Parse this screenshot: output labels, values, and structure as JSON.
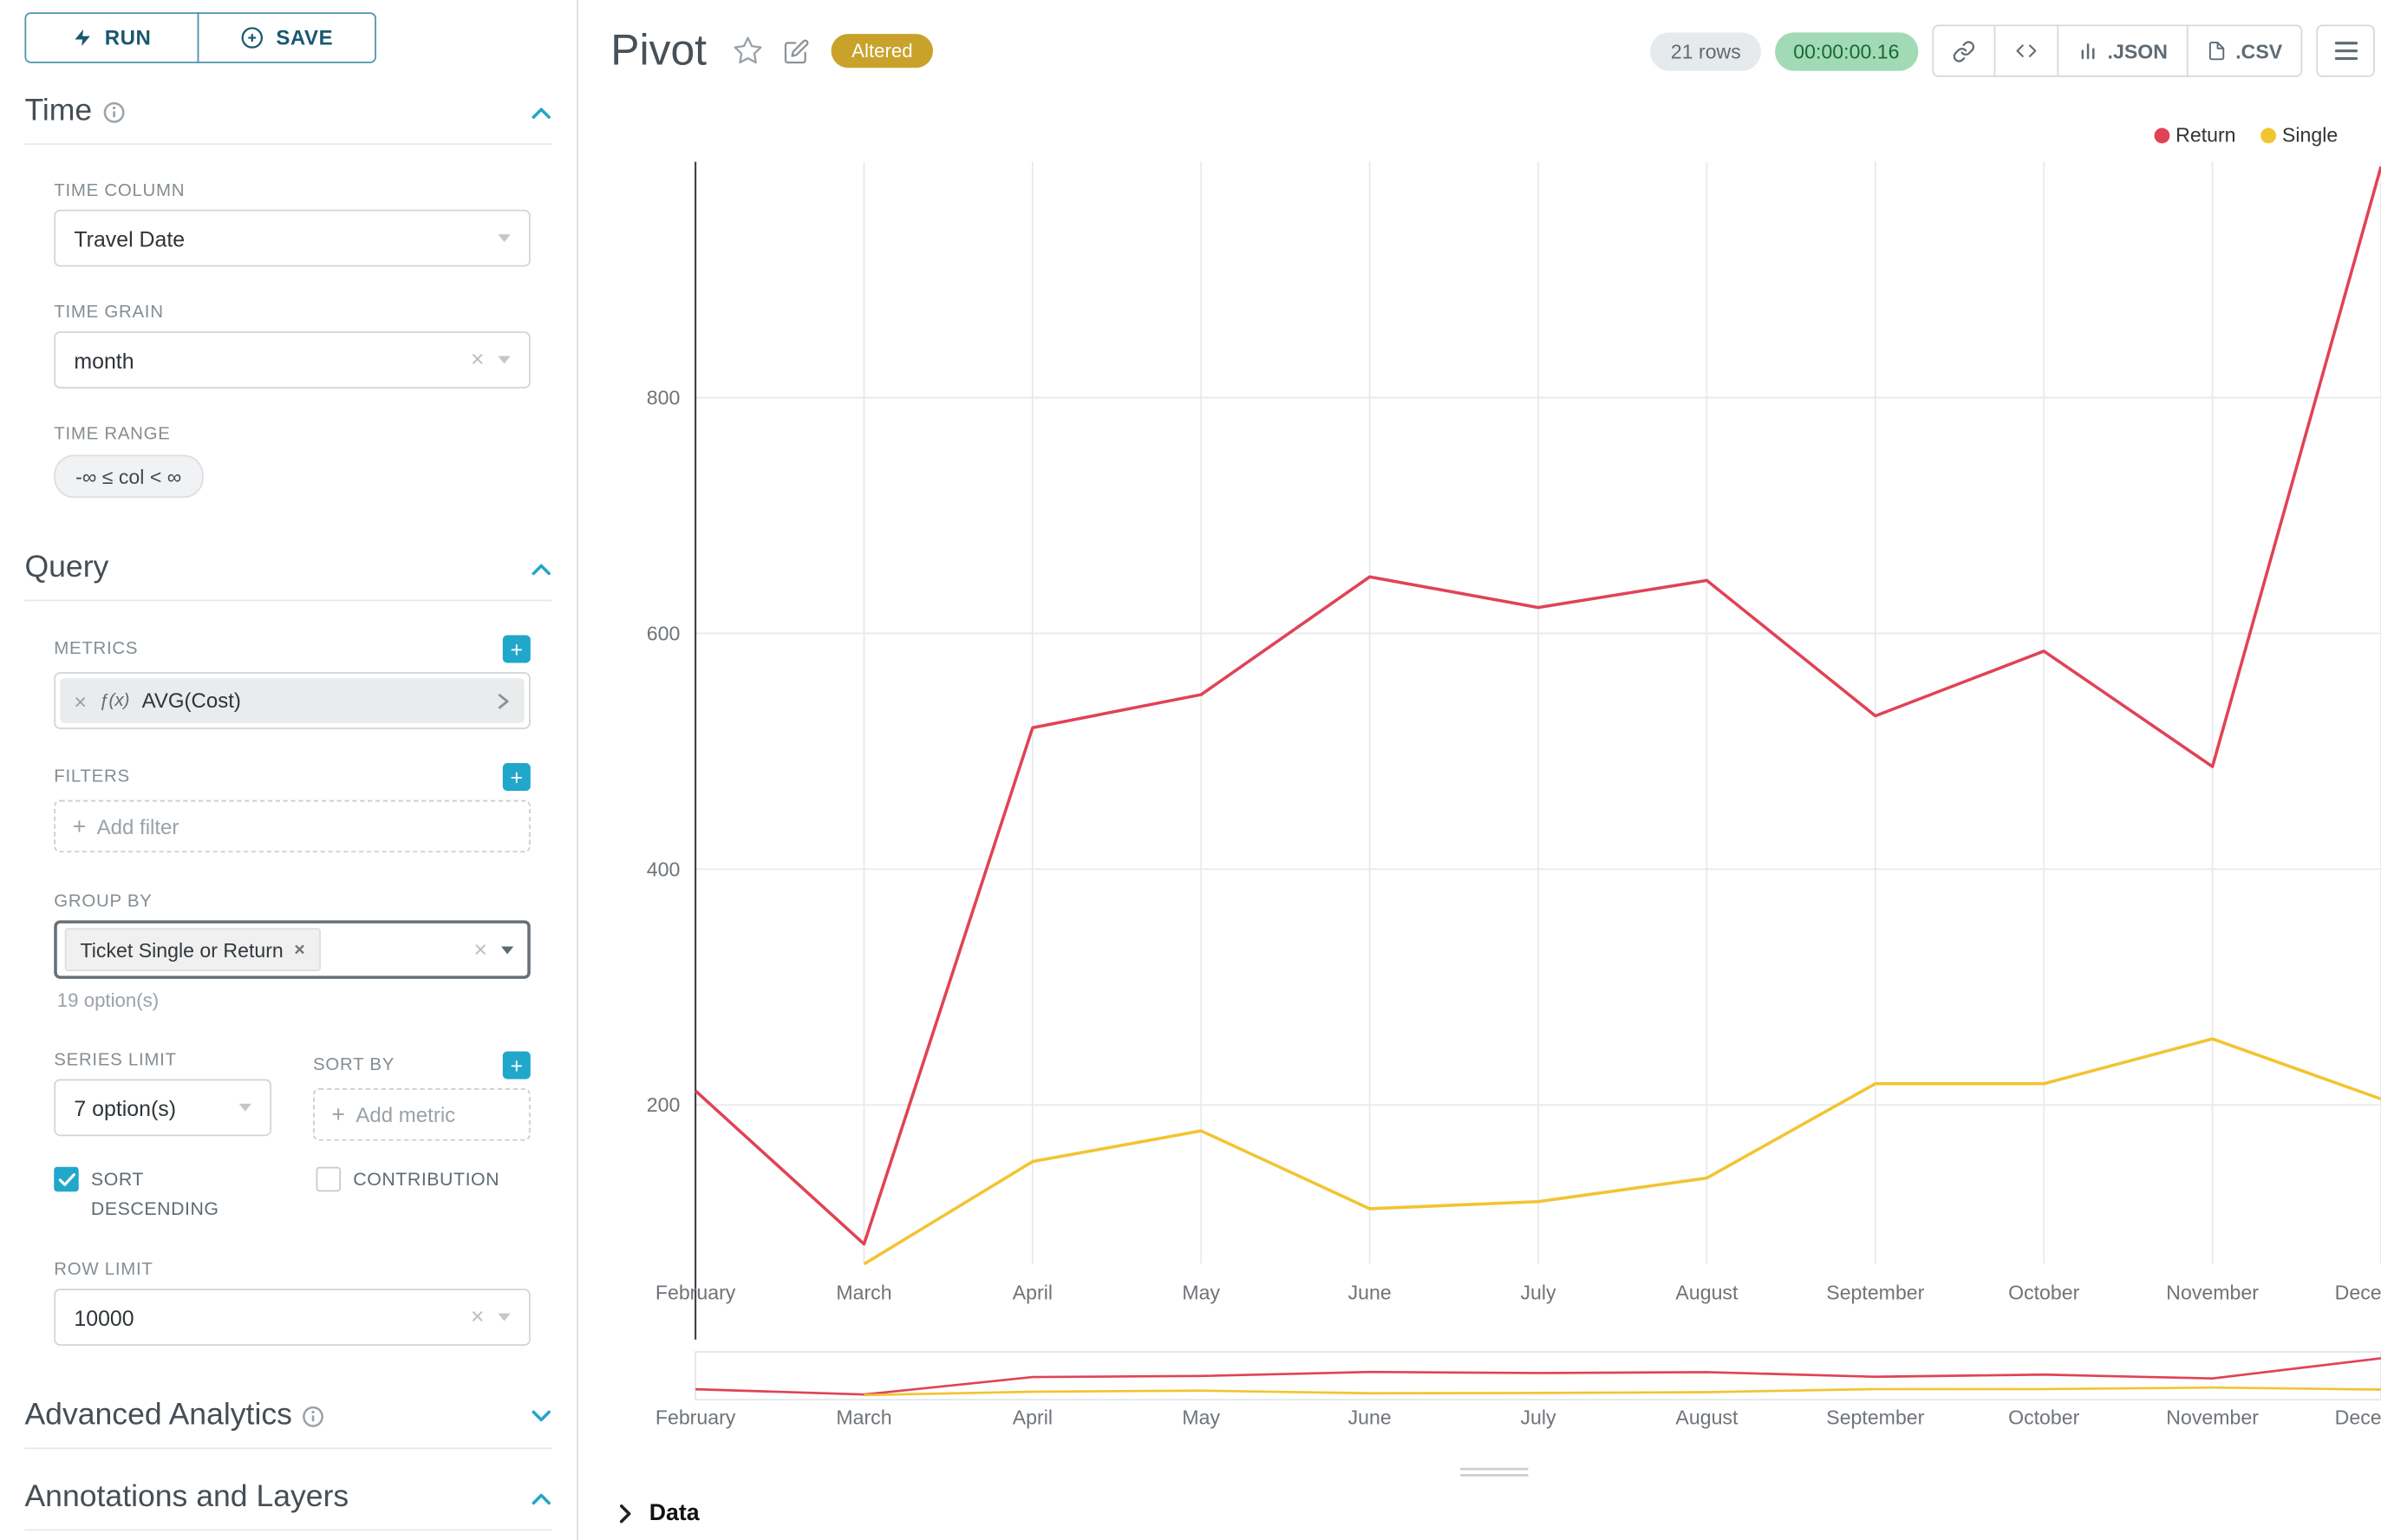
{
  "colors": {
    "accent": "#20A7C9",
    "series_return": "#E04355",
    "series_single": "#F2C431",
    "altered_bg": "#C9A22B",
    "timer_bg": "#A3DAB6",
    "timer_text": "#18693C"
  },
  "sidebar": {
    "run_button": "RUN",
    "save_button": "SAVE",
    "time": {
      "title": "Time",
      "time_column_label": "TIME COLUMN",
      "time_column_value": "Travel Date",
      "time_grain_label": "TIME GRAIN",
      "time_grain_value": "month",
      "time_range_label": "TIME RANGE",
      "time_range_value": "-∞ ≤ col < ∞"
    },
    "query": {
      "title": "Query",
      "metrics_label": "METRICS",
      "metric_fx": "ƒ(x)",
      "metric_name": "AVG(Cost)",
      "filters_label": "FILTERS",
      "add_filter_placeholder": "Add filter",
      "group_by_label": "GROUP BY",
      "group_by_chip": "Ticket Single or Return",
      "group_by_hint": "19 option(s)",
      "series_limit_label": "SERIES LIMIT",
      "series_limit_value": "7 option(s)",
      "sort_by_label": "SORT BY",
      "add_metric_placeholder": "Add metric",
      "sort_descending_label": "SORT DESCENDING",
      "contribution_label": "CONTRIBUTION",
      "row_limit_label": "ROW LIMIT",
      "row_limit_value": "10000"
    },
    "advanced": {
      "title": "Advanced Analytics"
    },
    "annotations": {
      "title": "Annotations and Layers"
    }
  },
  "header": {
    "title": "Pivot",
    "altered_badge": "Altered",
    "rows_count": "21 rows",
    "timer": "00:00:00.16",
    "json_button": ".JSON",
    "csv_button": ".CSV"
  },
  "data_panel": {
    "title": "Data"
  },
  "chart_data": {
    "type": "line",
    "x": [
      "February",
      "March",
      "April",
      "May",
      "June",
      "July",
      "August",
      "September",
      "October",
      "November",
      "December"
    ],
    "series": [
      {
        "name": "Return",
        "color": "#E04355",
        "values": [
          212,
          82,
          520,
          548,
          648,
          622,
          645,
          530,
          585,
          487,
          996
        ]
      },
      {
        "name": "Single",
        "color": "#F2C431",
        "values": [
          null,
          65,
          152,
          178,
          112,
          118,
          138,
          218,
          218,
          256,
          205
        ]
      }
    ],
    "yticks": [
      200,
      400,
      600,
      800
    ],
    "ylim": [
      65,
      1000
    ],
    "xlabel": "",
    "ylabel": "",
    "grid": true,
    "legend": [
      "Return",
      "Single"
    ],
    "legend_position": "top-right",
    "has_mini_preview": true
  }
}
